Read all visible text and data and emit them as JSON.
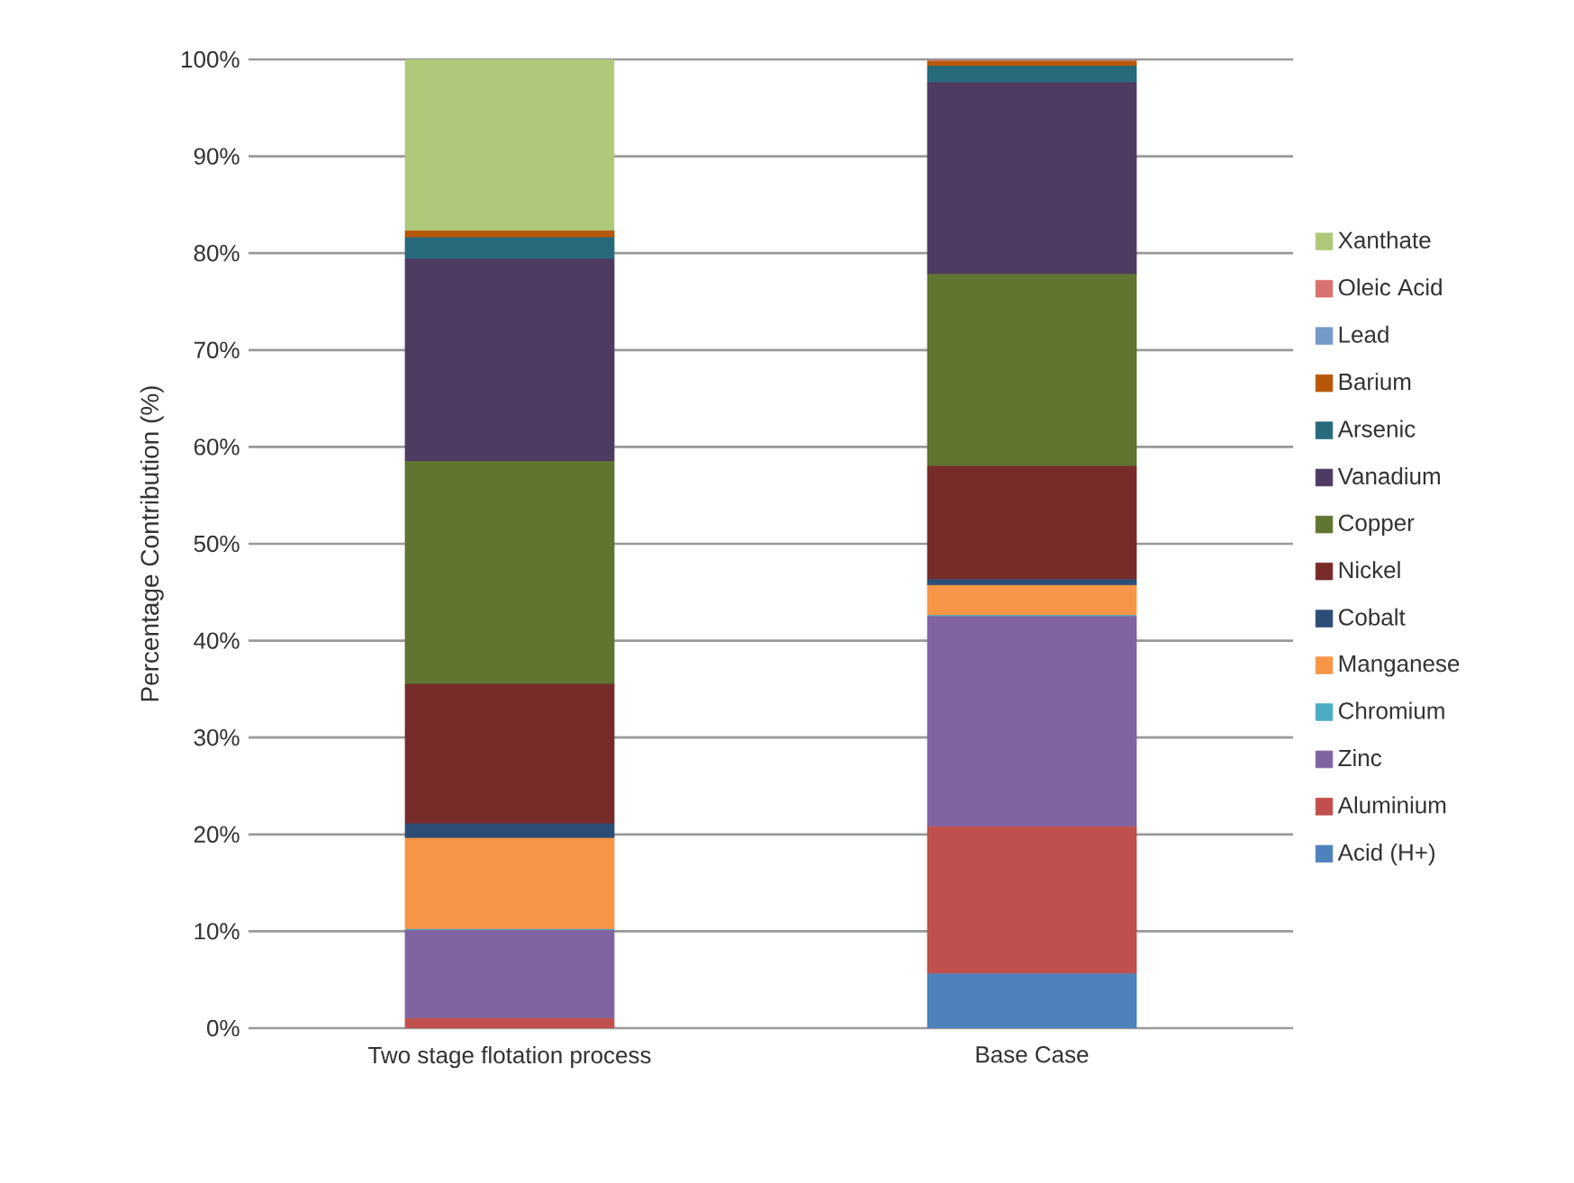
{
  "chart_data": {
    "type": "bar",
    "stacked": true,
    "ylabel": "Percentage Contribution (%)",
    "categories": [
      "Two stage flotation process",
      "Base Case"
    ],
    "ylim": [
      0,
      100
    ],
    "yticks": [
      {
        "value": 0,
        "label": "0%"
      },
      {
        "value": 10,
        "label": "10%"
      },
      {
        "value": 20,
        "label": "20%"
      },
      {
        "value": 30,
        "label": "30%"
      },
      {
        "value": 40,
        "label": "40%"
      },
      {
        "value": 50,
        "label": "50%"
      },
      {
        "value": 60,
        "label": "60%"
      },
      {
        "value": 70,
        "label": "70%"
      },
      {
        "value": 80,
        "label": "80%"
      },
      {
        "value": 90,
        "label": "90%"
      },
      {
        "value": 100,
        "label": "100%"
      }
    ],
    "grid": "y",
    "legend": "right",
    "series": [
      {
        "name": "Acid (H+)",
        "color": "#4f81bd",
        "values": [
          0,
          5.6
        ]
      },
      {
        "name": "Aluminium",
        "color": "#c0504d",
        "values": [
          1.0,
          15.2
        ]
      },
      {
        "name": "Zinc",
        "color": "#8064a2",
        "values": [
          9.1,
          21.7
        ]
      },
      {
        "name": "Chromium",
        "color": "#4bacc6",
        "values": [
          0.1,
          0.1
        ]
      },
      {
        "name": "Manganese",
        "color": "#f79646",
        "values": [
          9.4,
          3.1
        ]
      },
      {
        "name": "Cobalt",
        "color": "#2c4d75",
        "values": [
          1.5,
          0.6
        ]
      },
      {
        "name": "Nickel",
        "color": "#772c2a",
        "values": [
          14.4,
          11.7
        ]
      },
      {
        "name": "Copper",
        "color": "#5f7530",
        "values": [
          23.0,
          19.8
        ]
      },
      {
        "name": "Vanadium",
        "color": "#4d3b62",
        "values": [
          20.9,
          19.8
        ]
      },
      {
        "name": "Arsenic",
        "color": "#276a7c",
        "values": [
          2.2,
          1.7
        ]
      },
      {
        "name": "Barium",
        "color": "#b65708",
        "values": [
          0.7,
          0.5
        ]
      },
      {
        "name": "Lead",
        "color": "#729aca",
        "values": [
          0,
          null
        ]
      },
      {
        "name": "Oleic Acid",
        "color": "#d9726f",
        "values": [
          0,
          0.1
        ]
      },
      {
        "name": "Xanthate",
        "color": "#afc97a",
        "values": [
          17.7,
          0
        ]
      }
    ]
  }
}
